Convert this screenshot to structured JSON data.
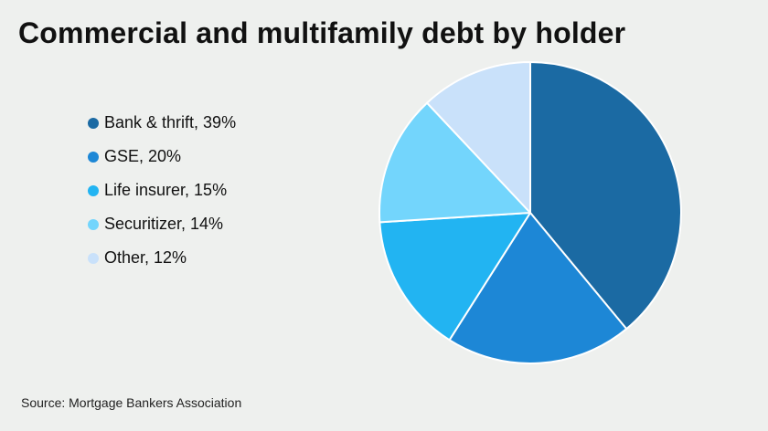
{
  "title": "Commercial and multifamily debt by holder",
  "source": "Source: Mortgage Bankers Association",
  "chart_data": {
    "type": "pie",
    "title": "Commercial and multifamily debt by holder",
    "legend_position": "left",
    "slices": [
      {
        "label": "Bank & thrift, 39%",
        "name": "Bank & thrift",
        "value": 39,
        "color": "#1b6aa3"
      },
      {
        "label": "GSE, 20%",
        "name": "GSE",
        "value": 20,
        "color": "#1d87d6"
      },
      {
        "label": "Life insurer, 15%",
        "name": "Life insurer",
        "value": 15,
        "color": "#22b4f2"
      },
      {
        "label": "Securitizer, 14%",
        "name": "Securitizer",
        "value": 14,
        "color": "#73d5fc"
      },
      {
        "label": "Other, 12%",
        "name": "Other",
        "value": 12,
        "color": "#c9e1fa"
      }
    ]
  }
}
